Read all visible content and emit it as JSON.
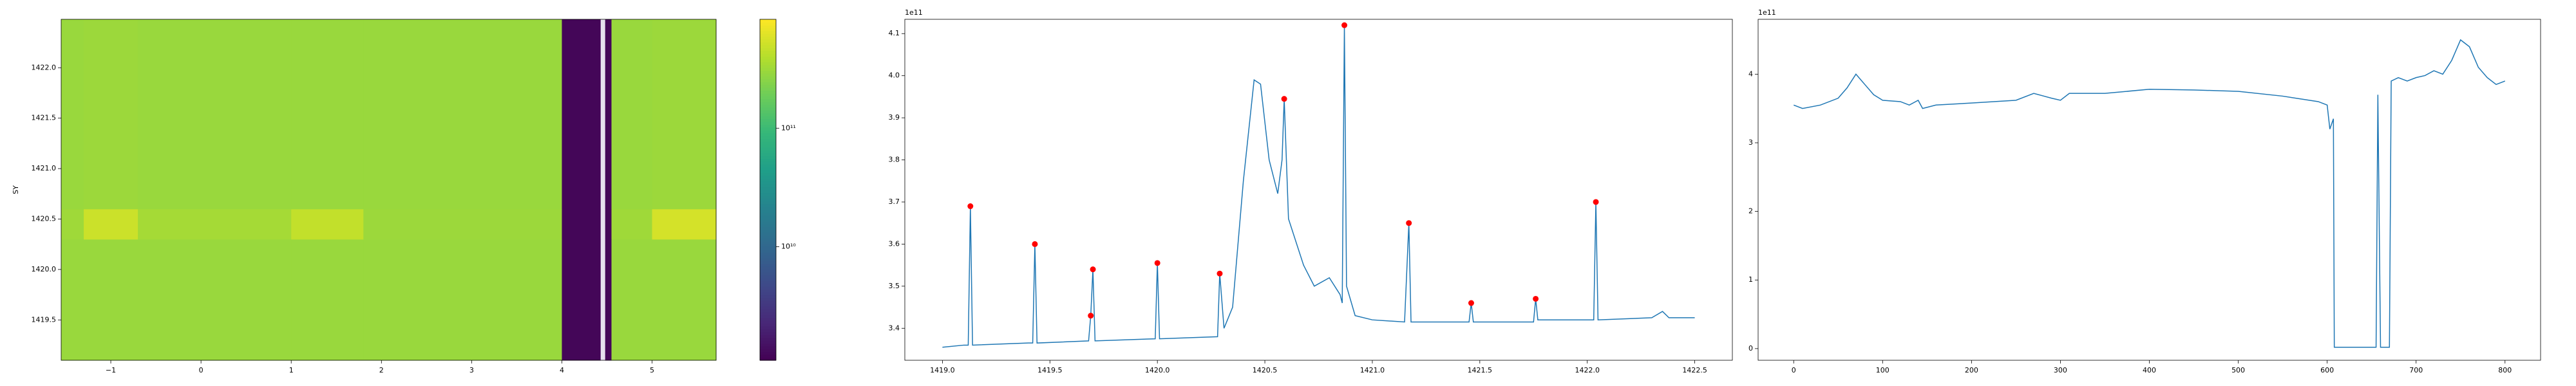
{
  "chart_data": [
    {
      "type": "heatmap",
      "ylabel": "SY",
      "cmap": "viridis",
      "log": true,
      "x_edges": [
        -1.55,
        -1.3,
        -0.7,
        1.0,
        1.8,
        4.0,
        4.43,
        4.48,
        4.55,
        5.0,
        5.71
      ],
      "y_edges": [
        1419.1,
        1420.3,
        1420.6,
        1422.48
      ],
      "z": [
        [
          300000000000.0,
          300000000000.0,
          300000000000.0,
          300000000000.0,
          300000000000.0,
          1200000000.0,
          null,
          1200000000.0,
          300000000000.0,
          300000000000.0
        ],
        [
          320000000000.0,
          500000000000.0,
          340000000000.0,
          460000000000.0,
          310000000000.0,
          1200000000.0,
          null,
          1200000000.0,
          320000000000.0,
          550000000000.0
        ],
        [
          300000000000.0,
          310000000000.0,
          300000000000.0,
          300000000000.0,
          300000000000.0,
          1200000000.0,
          null,
          1200000000.0,
          300000000000.0,
          310000000000.0
        ]
      ],
      "xlim": [
        -1.55,
        5.71
      ],
      "ylim": [
        1419.1,
        1422.48
      ],
      "xticks": [
        {
          "value": -1,
          "label": "−1"
        },
        0,
        1,
        2,
        3,
        4,
        5
      ],
      "yticks": [
        1419.5,
        {
          "value": 1420,
          "label": "1420.0"
        },
        1420.5,
        {
          "value": 1421,
          "label": "1421.0"
        },
        1421.5,
        {
          "value": 1422,
          "label": "1422.0"
        }
      ],
      "clim": [
        1100000000.0,
        830000000000.0
      ],
      "cticks": [
        {
          "value": 10000000000.0,
          "label": "10¹⁰"
        },
        {
          "value": 100000000000.0,
          "label": "10¹¹"
        }
      ]
    },
    {
      "type": "line",
      "offset_label": "1e11",
      "series": [
        {
          "type": "line",
          "color": "#1f77b4",
          "x": [
            1419.0,
            1419.1,
            1419.12,
            1419.13,
            1419.14,
            1419.4,
            1419.42,
            1419.43,
            1419.44,
            1419.68,
            1419.69,
            1419.7,
            1419.71,
            1419.99,
            1420.0,
            1420.01,
            1420.28,
            1420.29,
            1420.31,
            1420.35,
            1420.4,
            1420.45,
            1420.48,
            1420.52,
            1420.56,
            1420.58,
            1420.59,
            1420.61,
            1420.68,
            1420.73,
            1420.8,
            1420.85,
            1420.86,
            1420.87,
            1420.88,
            1420.92,
            1421.0,
            1421.15,
            1421.17,
            1421.18,
            1421.45,
            1421.46,
            1421.47,
            1421.75,
            1421.76,
            1421.77,
            1422.03,
            1422.04,
            1422.05,
            1422.3,
            1422.35,
            1422.38,
            1422.5
          ],
          "values": [
            335500000000.0,
            336000000000.0,
            336000000000.0,
            369000000000.0,
            336000000000.0,
            336500000000.0,
            336500000000.0,
            360000000000.0,
            336500000000.0,
            337000000000.0,
            343000000000.0,
            354000000000.0,
            337000000000.0,
            337500000000.0,
            355500000000.0,
            337500000000.0,
            338000000000.0,
            353000000000.0,
            340000000000.0,
            345000000000.0,
            375000000000.0,
            399000000000.0,
            398000000000.0,
            380000000000.0,
            372000000000.0,
            380000000000.0,
            394500000000.0,
            366000000000.0,
            355000000000.0,
            350000000000.0,
            352000000000.0,
            348000000000.0,
            346000000000.0,
            412000000000.0,
            350000000000.0,
            343000000000.0,
            342000000000.0,
            341500000000.0,
            365000000000.0,
            341500000000.0,
            341500000000.0,
            346000000000.0,
            341500000000.0,
            341500000000.0,
            347000000000.0,
            342000000000.0,
            342000000000.0,
            370000000000.0,
            342000000000.0,
            342500000000.0,
            344000000000.0,
            342500000000.0,
            342500000000.0
          ]
        },
        {
          "type": "scatter",
          "color": "#ff0000",
          "x": [
            1419.13,
            1419.43,
            1419.69,
            1419.7,
            1420.0,
            1420.29,
            1420.59,
            1420.87,
            1421.17,
            1421.46,
            1421.76,
            1422.04
          ],
          "values": [
            369000000000.0,
            360000000000.0,
            343000000000.0,
            354000000000.0,
            355500000000.0,
            353000000000.0,
            394500000000.0,
            412000000000.0,
            365000000000.0,
            346000000000.0,
            347000000000.0,
            370000000000.0
          ]
        }
      ],
      "xlim": [
        1418.825,
        1422.675
      ],
      "ylim": [
        332400000000.0,
        413400000000.0
      ],
      "xticks": [
        {
          "value": 1419,
          "label": "1419.0"
        },
        1419.5,
        {
          "value": 1420,
          "label": "1420.0"
        },
        1420.5,
        {
          "value": 1421,
          "label": "1421.0"
        },
        1421.5,
        {
          "value": 1422,
          "label": "1422.0"
        },
        1422.5
      ],
      "yticks": [
        {
          "value": 340000000000.0,
          "label": "3.4"
        },
        {
          "value": 350000000000.0,
          "label": "3.5"
        },
        {
          "value": 360000000000.0,
          "label": "3.6"
        },
        {
          "value": 370000000000.0,
          "label": "3.7"
        },
        {
          "value": 380000000000.0,
          "label": "3.8"
        },
        {
          "value": 390000000000.0,
          "label": "3.9"
        },
        {
          "value": 400000000000.0,
          "label": "4.0"
        },
        {
          "value": 410000000000.0,
          "label": "4.1"
        }
      ]
    },
    {
      "type": "line",
      "offset_label": "1e11",
      "series": [
        {
          "type": "line",
          "color": "#1f77b4",
          "x": [
            0,
            10,
            30,
            50,
            60,
            70,
            80,
            90,
            100,
            120,
            130,
            140,
            145,
            160,
            200,
            250,
            270,
            290,
            300,
            310,
            350,
            400,
            450,
            500,
            550,
            590,
            600,
            603,
            607,
            608,
            655,
            657,
            660,
            670,
            672,
            680,
            690,
            700,
            710,
            720,
            730,
            740,
            750,
            760,
            770,
            780,
            790,
            800
          ],
          "values": [
            355000000000.0,
            350000000000.0,
            355000000000.0,
            365000000000.0,
            380000000000.0,
            400000000000.0,
            385000000000.0,
            370000000000.0,
            362000000000.0,
            360000000000.0,
            355000000000.0,
            362000000000.0,
            350000000000.0,
            355000000000.0,
            358000000000.0,
            362000000000.0,
            372000000000.0,
            365000000000.0,
            362000000000.0,
            372000000000.0,
            372000000000.0,
            378000000000.0,
            377000000000.0,
            375000000000.0,
            368000000000.0,
            360000000000.0,
            355000000000.0,
            320000000000.0,
            335000000000.0,
            2000000000.0,
            2000000000.0,
            370000000000.0,
            2000000000.0,
            2000000000.0,
            390000000000.0,
            395000000000.0,
            390000000000.0,
            395000000000.0,
            398000000000.0,
            405000000000.0,
            400000000000.0,
            420000000000.0,
            450000000000.0,
            440000000000.0,
            410000000000.0,
            395000000000.0,
            385000000000.0,
            390000000000.0
          ]
        }
      ],
      "xlim": [
        -40,
        840
      ],
      "ylim": [
        -17000000000.0,
        480000000000.0
      ],
      "xticks": [
        0,
        100,
        200,
        300,
        400,
        500,
        600,
        700,
        800
      ],
      "yticks": [
        0,
        {
          "value": 100000000000.0,
          "label": "1"
        },
        {
          "value": 200000000000.0,
          "label": "2"
        },
        {
          "value": 300000000000.0,
          "label": "3"
        },
        {
          "value": 400000000000.0,
          "label": "4"
        }
      ]
    }
  ]
}
